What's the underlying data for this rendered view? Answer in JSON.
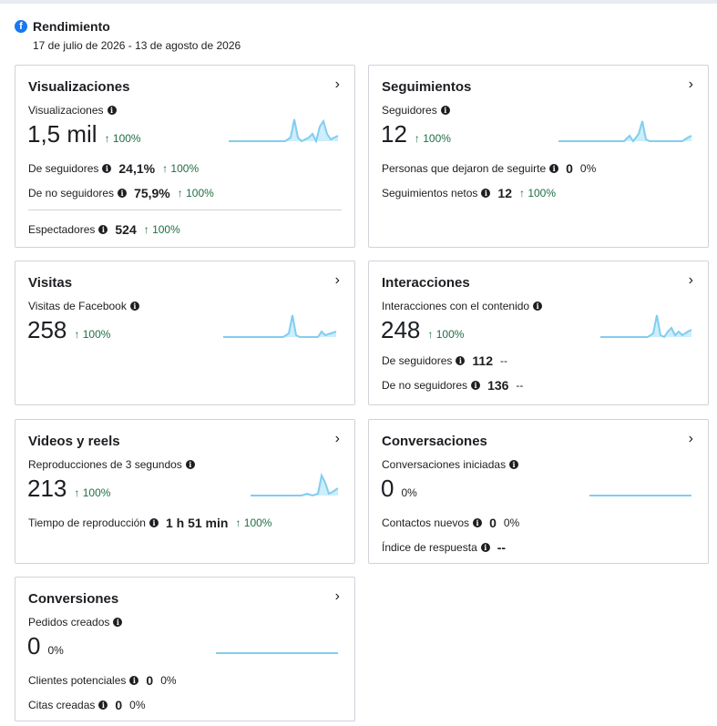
{
  "header": {
    "title": "Rendimiento",
    "date_range": "17 de julio de 2026 - 13 de agosto de 2026"
  },
  "colors": {
    "spark_line": "#82cdf0",
    "spark_fill": "#cdeefb",
    "up": "#1f6e43",
    "fb_blue": "#1877f2"
  },
  "visualizaciones": {
    "title": "Visualizaciones",
    "label": "Visualizaciones",
    "value": "1,5 mil",
    "change": "↑ 100%",
    "seguidores_label": "De seguidores",
    "seguidores_value": "24,1%",
    "seguidores_change": "↑ 100%",
    "no_seguidores_label": "De no seguidores",
    "no_seguidores_value": "75,9%",
    "no_seguidores_change": "↑ 100%",
    "espectadores_label": "Espectadores",
    "espectadores_value": "524",
    "espectadores_change": "↑ 100%"
  },
  "seguimientos": {
    "title": "Seguimientos",
    "label": "Seguidores",
    "value": "12",
    "change": "↑ 100%",
    "unfollow_label": "Personas que dejaron de seguirte",
    "unfollow_value": "0",
    "unfollow_change": "0%",
    "netos_label": "Seguimientos netos",
    "netos_value": "12",
    "netos_change": "↑ 100%"
  },
  "visitas": {
    "title": "Visitas",
    "label": "Visitas de Facebook",
    "value": "258",
    "change": "↑ 100%"
  },
  "interacciones": {
    "title": "Interacciones",
    "label": "Interacciones con el contenido",
    "value": "248",
    "change": "↑ 100%",
    "seguidores_label": "De seguidores",
    "seguidores_value": "112",
    "seguidores_change": "--",
    "no_seguidores_label": "De no seguidores",
    "no_seguidores_value": "136",
    "no_seguidores_change": "--"
  },
  "videos": {
    "title": "Videos y reels",
    "label": "Reproducciones de 3 segundos",
    "value": "213",
    "change": "↑ 100%",
    "tiempo_label": "Tiempo de reproducción",
    "tiempo_value": "1 h 51 min",
    "tiempo_change": "↑ 100%"
  },
  "conversaciones": {
    "title": "Conversaciones",
    "label": "Conversaciones iniciadas",
    "value": "0",
    "change": "0%",
    "contactos_label": "Contactos nuevos",
    "contactos_value": "0",
    "contactos_change": "0%",
    "respuesta_label": "Índice de respuesta",
    "respuesta_value": "--"
  },
  "conversiones": {
    "title": "Conversiones",
    "label": "Pedidos creados",
    "value": "0",
    "change": "0%",
    "clientes_label": "Clientes potenciales",
    "clientes_value": "0",
    "clientes_change": "0%",
    "citas_label": "Citas creadas",
    "citas_value": "0",
    "citas_change": "0%"
  }
}
